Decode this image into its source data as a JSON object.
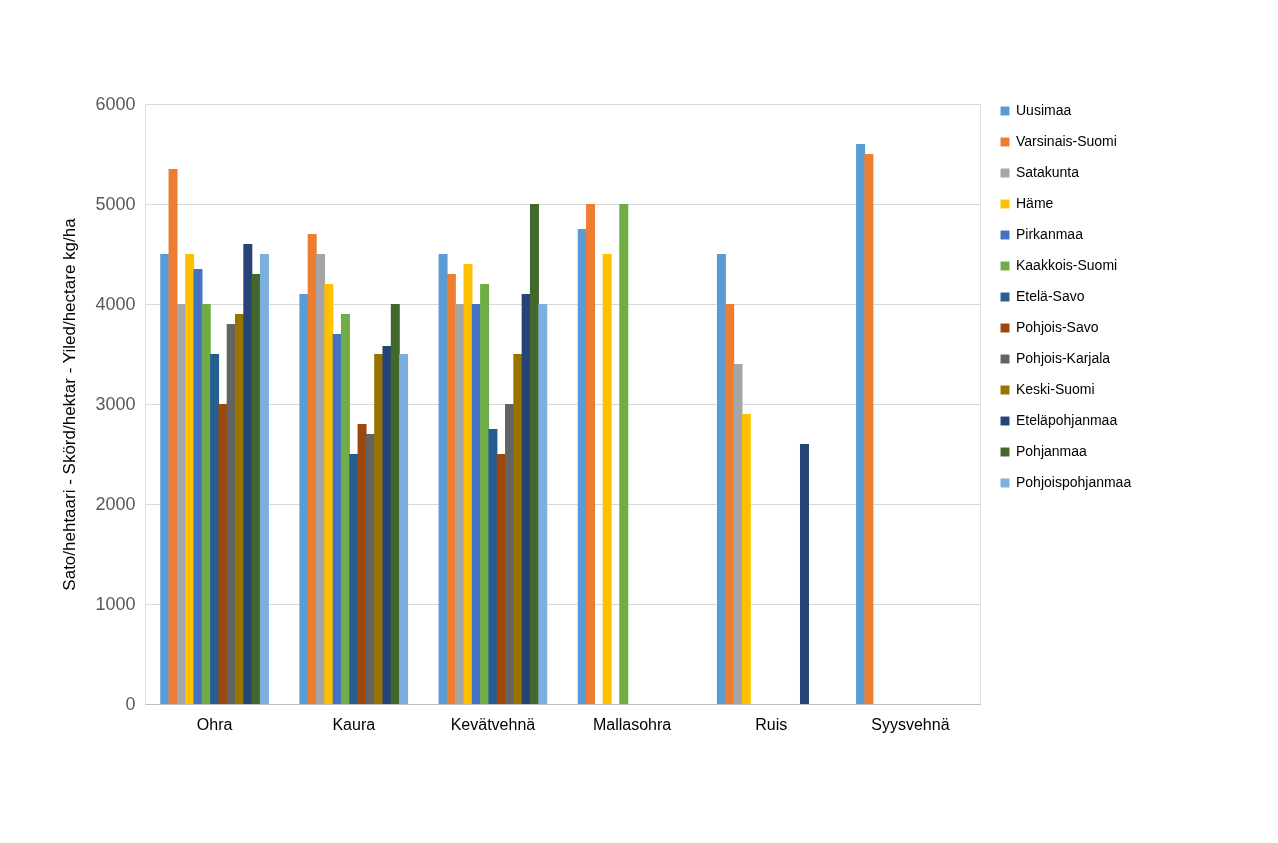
{
  "chart_data": {
    "type": "bar",
    "ylabel": "Sato/hehtaari - Skörd/hektar - Yiled/hectare kg/ha",
    "categories": [
      "Ohra",
      "Kaura",
      "Kevätvehnä",
      "Mallasohra",
      "Ruis",
      "Syysvehnä"
    ],
    "ylim": [
      0,
      6000
    ],
    "yticks": [
      0,
      1000,
      2000,
      3000,
      4000,
      5000,
      6000
    ],
    "grid": "y",
    "legend": "right",
    "series": [
      {
        "name": "Uusimaa",
        "color": "#5b9bd5",
        "values": [
          4500,
          4100,
          4500,
          4750,
          4500,
          5600
        ]
      },
      {
        "name": "Varsinais-Suomi",
        "color": "#ed7d31",
        "values": [
          5350,
          4700,
          4300,
          5000,
          4000,
          5500
        ]
      },
      {
        "name": "Satakunta",
        "color": "#a5a5a5",
        "values": [
          4000,
          4500,
          4000,
          null,
          3400,
          null
        ]
      },
      {
        "name": "Häme",
        "color": "#ffc000",
        "values": [
          4500,
          4200,
          4400,
          4500,
          2900,
          null
        ]
      },
      {
        "name": "Pirkanmaa",
        "color": "#4472c4",
        "values": [
          4350,
          3700,
          4000,
          null,
          null,
          null
        ]
      },
      {
        "name": "Kaakkois-Suomi",
        "color": "#70ad47",
        "values": [
          4000,
          3900,
          4200,
          5000,
          null,
          null
        ]
      },
      {
        "name": "Etelä-Savo",
        "color": "#255e91",
        "values": [
          3500,
          2500,
          2750,
          null,
          null,
          null
        ]
      },
      {
        "name": "Pohjois-Savo",
        "color": "#9e480e",
        "values": [
          3000,
          2800,
          2500,
          null,
          null,
          null
        ]
      },
      {
        "name": "Pohjois-Karjala",
        "color": "#636363",
        "values": [
          3800,
          2700,
          3000,
          null,
          null,
          null
        ]
      },
      {
        "name": "Keski-Suomi",
        "color": "#997300",
        "values": [
          3900,
          3500,
          3500,
          null,
          null,
          null
        ]
      },
      {
        "name": "Eteläpohjanmaa",
        "color": "#264478",
        "values": [
          4600,
          3580,
          4100,
          null,
          2600,
          null
        ]
      },
      {
        "name": "Pohjanmaa",
        "color": "#43682b",
        "values": [
          4300,
          4000,
          5000,
          null,
          null,
          null
        ]
      },
      {
        "name": "Pohjoispohjanmaa",
        "color": "#7cafdd",
        "values": [
          4500,
          3500,
          4000,
          null,
          null,
          null
        ]
      }
    ]
  }
}
